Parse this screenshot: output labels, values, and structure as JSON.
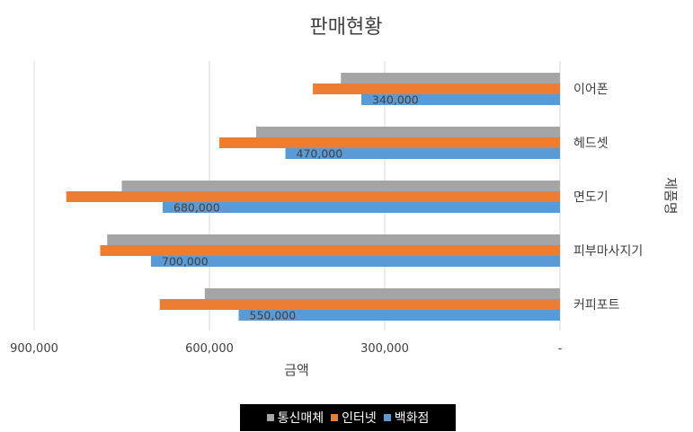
{
  "chart_data": {
    "type": "bar",
    "orientation": "horizontal",
    "x_reversed": true,
    "y_axis_side": "right",
    "title": "판매현황",
    "xlabel": "금액",
    "ylabel": "제품명",
    "xlim": [
      0,
      900000
    ],
    "x_ticks": [
      900000,
      600000,
      300000,
      0
    ],
    "x_tick_labels": [
      "900,000",
      "600,000",
      "300,000",
      "-"
    ],
    "categories": [
      "이어폰",
      "헤드셋",
      "면도기",
      "피부마사지기",
      "커피포트"
    ],
    "series": [
      {
        "name": "통신매체",
        "color": "#a5a5a5",
        "values": [
          375000,
          520000,
          750000,
          775000,
          608000
        ]
      },
      {
        "name": "인터넷",
        "color": "#ed7d31",
        "values": [
          423000,
          583000,
          845000,
          787000,
          685000
        ]
      },
      {
        "name": "백화점",
        "color": "#5b9bd5",
        "values": [
          340000,
          470000,
          680000,
          700000,
          550000
        ],
        "data_labels": [
          "340,000",
          "470,000",
          "680,000",
          "700,000",
          "550,000"
        ]
      }
    ],
    "grid": true,
    "legend_position": "bottom"
  }
}
